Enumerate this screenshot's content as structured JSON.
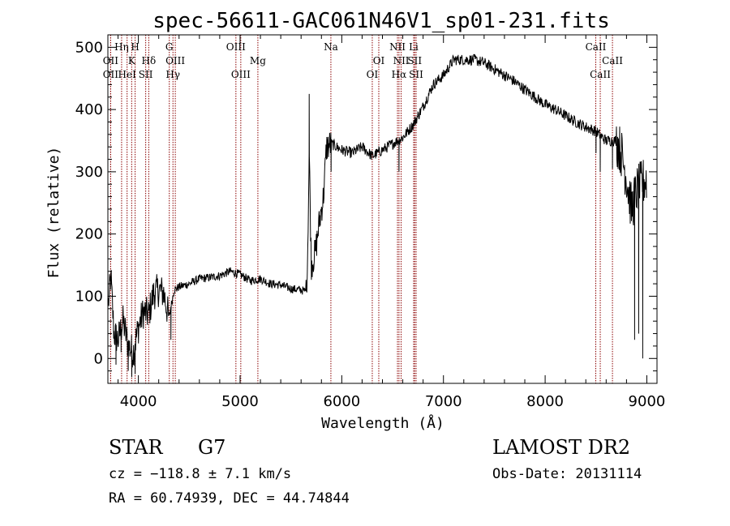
{
  "chart_data": {
    "type": "line",
    "title": "spec-56611-GAC061N46V1_sp01-231.fits",
    "xlabel": "Wavelength (Å)",
    "ylabel": "Flux (relative)",
    "xlim": [
      3700,
      9100
    ],
    "ylim": [
      -40,
      520
    ],
    "x_ticks": [
      4000,
      5000,
      6000,
      7000,
      8000,
      9000
    ],
    "y_ticks": [
      0,
      100,
      200,
      300,
      400,
      500
    ],
    "spectrum_color": "#000000",
    "line_marker_color": "#8b0000",
    "spectrum_anchors": [
      [
        3700,
        80
      ],
      [
        3730,
        130
      ],
      [
        3760,
        40
      ],
      [
        3800,
        30
      ],
      [
        3850,
        60
      ],
      [
        3900,
        20
      ],
      [
        3950,
        10
      ],
      [
        4000,
        50
      ],
      [
        4050,
        75
      ],
      [
        4100,
        70
      ],
      [
        4150,
        105
      ],
      [
        4200,
        110
      ],
      [
        4250,
        105
      ],
      [
        4300,
        65
      ],
      [
        4350,
        110
      ],
      [
        4400,
        115
      ],
      [
        4500,
        120
      ],
      [
        4600,
        128
      ],
      [
        4700,
        130
      ],
      [
        4800,
        133
      ],
      [
        4900,
        140
      ],
      [
        5000,
        135
      ],
      [
        5100,
        125
      ],
      [
        5200,
        128
      ],
      [
        5300,
        120
      ],
      [
        5400,
        118
      ],
      [
        5500,
        112
      ],
      [
        5600,
        110
      ],
      [
        5640,
        108
      ],
      [
        5660,
        135
      ],
      [
        5680,
        330
      ],
      [
        5700,
        150
      ],
      [
        5740,
        170
      ],
      [
        5780,
        220
      ],
      [
        5820,
        260
      ],
      [
        5850,
        340
      ],
      [
        5900,
        345
      ],
      [
        6000,
        335
      ],
      [
        6100,
        330
      ],
      [
        6200,
        340
      ],
      [
        6300,
        325
      ],
      [
        6400,
        335
      ],
      [
        6500,
        345
      ],
      [
        6600,
        355
      ],
      [
        6700,
        375
      ],
      [
        6800,
        405
      ],
      [
        6900,
        440
      ],
      [
        7000,
        455
      ],
      [
        7100,
        480
      ],
      [
        7200,
        480
      ],
      [
        7300,
        480
      ],
      [
        7400,
        475
      ],
      [
        7500,
        465
      ],
      [
        7600,
        455
      ],
      [
        7700,
        445
      ],
      [
        7800,
        432
      ],
      [
        7900,
        420
      ],
      [
        8000,
        408
      ],
      [
        8100,
        400
      ],
      [
        8200,
        390
      ],
      [
        8300,
        380
      ],
      [
        8400,
        372
      ],
      [
        8500,
        365
      ],
      [
        8600,
        350
      ],
      [
        8700,
        350
      ],
      [
        8750,
        330
      ],
      [
        8800,
        290
      ],
      [
        8850,
        240
      ],
      [
        8900,
        270
      ],
      [
        8950,
        280
      ],
      [
        9000,
        290
      ]
    ],
    "spectrum_spikes": [
      [
        3730,
        140
      ],
      [
        3780,
        -10
      ],
      [
        3830,
        10
      ],
      [
        3900,
        -20
      ],
      [
        3935,
        -30
      ],
      [
        3968,
        -25
      ],
      [
        4320,
        30
      ],
      [
        5680,
        425
      ],
      [
        5895,
        300
      ],
      [
        6563,
        300
      ],
      [
        8500,
        330
      ],
      [
        8542,
        300
      ],
      [
        8662,
        305
      ],
      [
        8880,
        30
      ],
      [
        8920,
        40
      ],
      [
        8960,
        0
      ]
    ],
    "emission_lines": [
      {
        "wavelength": 3727,
        "label": "OII",
        "row": 1
      },
      {
        "wavelength": 3727,
        "label": "OII",
        "row": 2
      },
      {
        "wavelength": 3835,
        "label": "Hη",
        "row": 0
      },
      {
        "wavelength": 3889,
        "label": "HeI",
        "row": 2
      },
      {
        "wavelength": 3934,
        "label": "K",
        "row": 1
      },
      {
        "wavelength": 3968,
        "label": "H",
        "row": 0
      },
      {
        "wavelength": 4072,
        "label": "SII",
        "row": 2
      },
      {
        "wavelength": 4102,
        "label": "Hδ",
        "row": 1
      },
      {
        "wavelength": 4304,
        "label": "G",
        "row": 0
      },
      {
        "wavelength": 4340,
        "label": "Hγ",
        "row": 2
      },
      {
        "wavelength": 4363,
        "label": "OIII",
        "row": 1
      },
      {
        "wavelength": 4959,
        "label": "OIII",
        "row": 0
      },
      {
        "wavelength": 5007,
        "label": "OIII",
        "row": 2
      },
      {
        "wavelength": 5175,
        "label": "Mg",
        "row": 1
      },
      {
        "wavelength": 5893,
        "label": "Na",
        "row": 0
      },
      {
        "wavelength": 6300,
        "label": "OI",
        "row": 2
      },
      {
        "wavelength": 6364,
        "label": "OI",
        "row": 1
      },
      {
        "wavelength": 6548,
        "label": "NII",
        "row": 0
      },
      {
        "wavelength": 6563,
        "label": "Hα",
        "row": 2
      },
      {
        "wavelength": 6584,
        "label": "NII",
        "row": 1
      },
      {
        "wavelength": 6707,
        "label": "Li",
        "row": 0
      },
      {
        "wavelength": 6717,
        "label": "SII",
        "row": 1
      },
      {
        "wavelength": 6731,
        "label": "SII",
        "row": 2
      },
      {
        "wavelength": 8498,
        "label": "CaII",
        "row": 0
      },
      {
        "wavelength": 8542,
        "label": "CaII",
        "row": 2
      },
      {
        "wavelength": 8662,
        "label": "CaII",
        "row": 1
      }
    ]
  },
  "info": {
    "object_class": "STAR",
    "subclass": "G7",
    "survey": "LAMOST DR2",
    "cz": "cz = −118.8 ± 7.1 km/s",
    "obs_date": "Obs-Date: 20131114",
    "coords": "RA =  60.74939, DEC =  44.74844"
  }
}
